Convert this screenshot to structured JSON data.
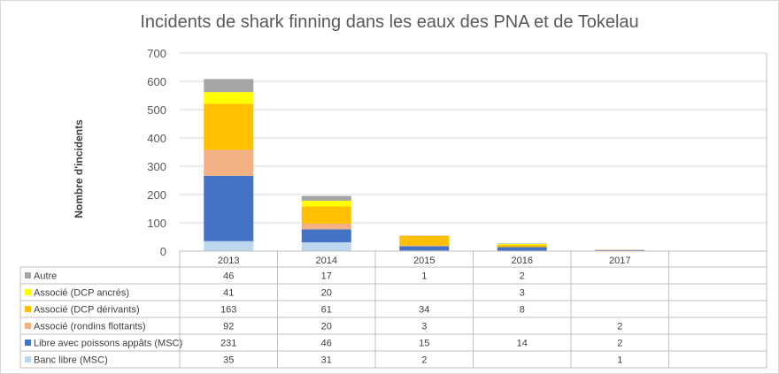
{
  "chart_data": {
    "type": "bar",
    "stacked": true,
    "title": "Incidents de shark finning dans les eaux des PNA et de Tokelau",
    "ylabel": "Nombre d'incidents",
    "xlabel": "",
    "ylim": [
      0,
      700
    ],
    "yticks": [
      0,
      100,
      200,
      300,
      400,
      500,
      600,
      700
    ],
    "grid": true,
    "legend_placement": "data-table-left",
    "categories": [
      "2013",
      "2014",
      "2015",
      "2016",
      "2017"
    ],
    "series": [
      {
        "name": "Banc libre (MSC)",
        "color": "#bdd7ee",
        "values": [
          35,
          31,
          2,
          null,
          1
        ]
      },
      {
        "name": "Libre avec poissons appâts (MSC)",
        "color": "#4472c4",
        "values": [
          231,
          46,
          15,
          14,
          2
        ]
      },
      {
        "name": "Associé (rondins flottants)",
        "color": "#f4b183",
        "values": [
          92,
          20,
          3,
          null,
          2
        ]
      },
      {
        "name": "Associé (DCP dérivants)",
        "color": "#ffc000",
        "values": [
          163,
          61,
          34,
          8,
          null
        ]
      },
      {
        "name": "Associé (DCP ancrés)",
        "color": "#ffff00",
        "values": [
          41,
          20,
          null,
          3,
          null
        ]
      },
      {
        "name": "Autre",
        "color": "#a5a5a5",
        "values": [
          46,
          17,
          1,
          2,
          null
        ]
      }
    ]
  }
}
